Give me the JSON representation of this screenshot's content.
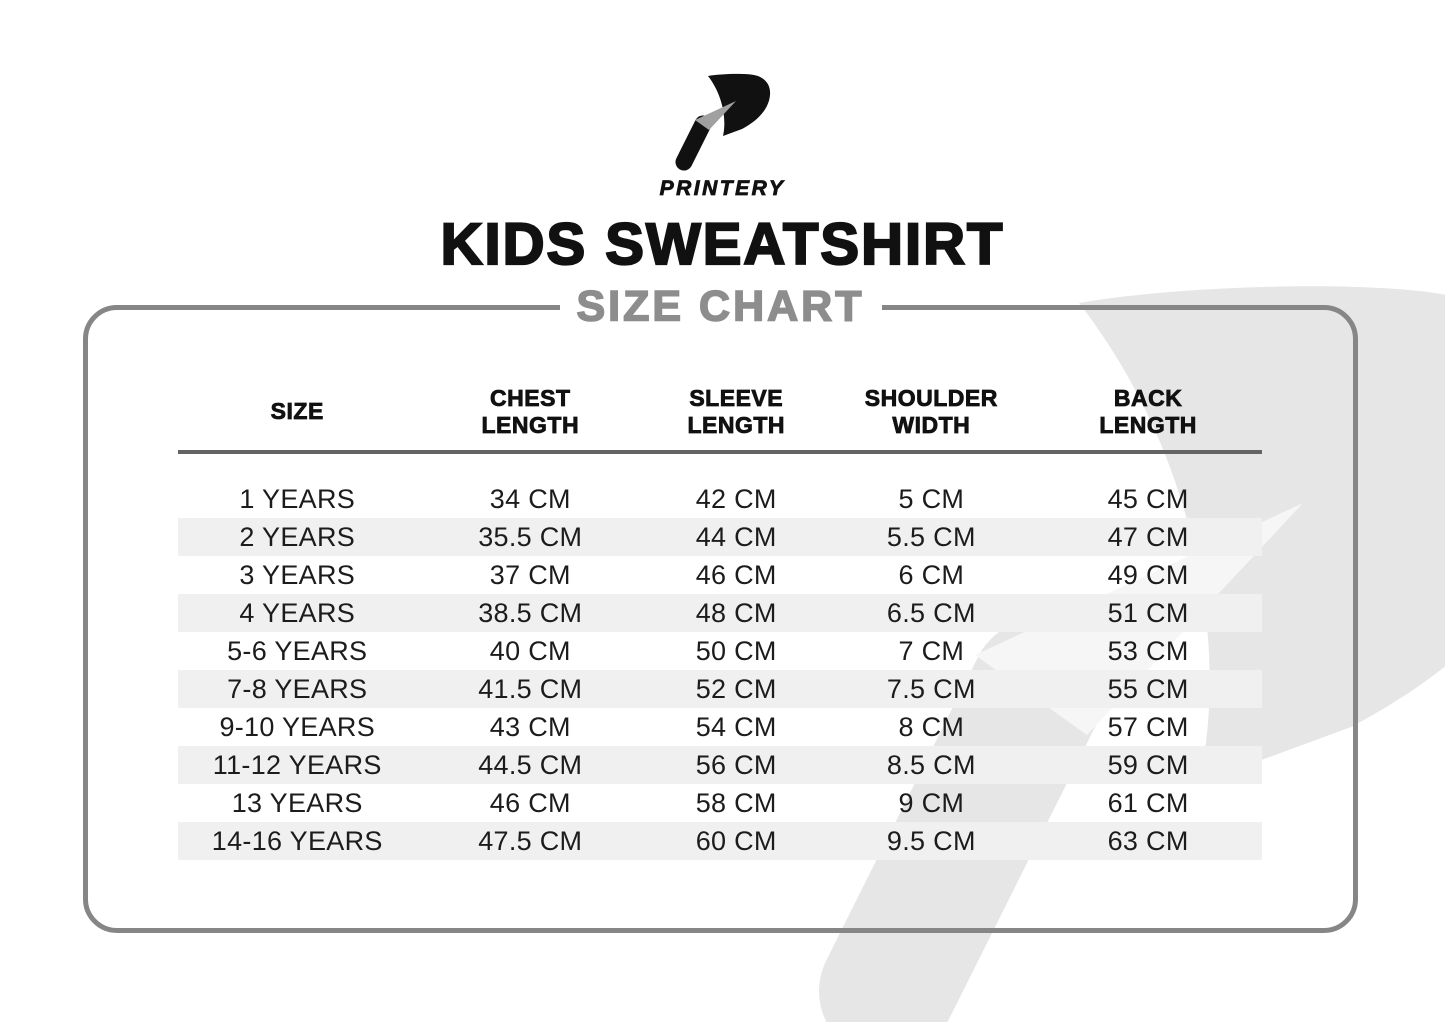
{
  "brand": {
    "name": "PRINTERY"
  },
  "title": "KIDS SWEATSHIRT",
  "subtitle": "SIZE CHART",
  "table": {
    "columns": [
      {
        "lines": [
          "SIZE"
        ]
      },
      {
        "lines": [
          "CHEST",
          "LENGTH"
        ]
      },
      {
        "lines": [
          "SLEEVE",
          "LENGTH"
        ]
      },
      {
        "lines": [
          "SHOULDER",
          "WIDTH"
        ]
      },
      {
        "lines": [
          "BACK",
          "LENGTH"
        ]
      }
    ],
    "rows": [
      {
        "cells": [
          "1 YEARS",
          "34 CM",
          "42 CM",
          "5 CM",
          "45 CM"
        ]
      },
      {
        "cells": [
          "2 YEARS",
          "35.5 CM",
          "44 CM",
          "5.5 CM",
          "47 CM"
        ]
      },
      {
        "cells": [
          "3 YEARS",
          "37 CM",
          "46 CM",
          "6 CM",
          "49 CM"
        ]
      },
      {
        "cells": [
          "4 YEARS",
          "38.5 CM",
          "48 CM",
          "6.5 CM",
          "51 CM"
        ]
      },
      {
        "cells": [
          "5-6 YEARS",
          "40 CM",
          "50 CM",
          "7 CM",
          "53 CM"
        ]
      },
      {
        "cells": [
          "7-8 YEARS",
          "41.5 CM",
          "52 CM",
          "7.5 CM",
          "55 CM"
        ]
      },
      {
        "cells": [
          "9-10 YEARS",
          "43 CM",
          "54 CM",
          "8 CM",
          "57 CM"
        ]
      },
      {
        "cells": [
          "11-12 YEARS",
          "44.5 CM",
          "56 CM",
          "8.5 CM",
          "59 CM"
        ]
      },
      {
        "cells": [
          "13 YEARS",
          "46 CM",
          "58 CM",
          "9 CM",
          "61 CM"
        ]
      },
      {
        "cells": [
          "14-16 YEARS",
          "47.5 CM",
          "60 CM",
          "9.5 CM",
          "63 CM"
        ]
      }
    ]
  },
  "colors": {
    "text": "#111111",
    "subtitle_gray": "#8d8d8d",
    "card_border": "#868686",
    "header_rule": "#646464",
    "row_stripe": "#f0f0f0",
    "watermark": "#e6e6e6",
    "watermark_fold": "#f6f6f6",
    "logo_arrow": "#a0a0a0"
  }
}
